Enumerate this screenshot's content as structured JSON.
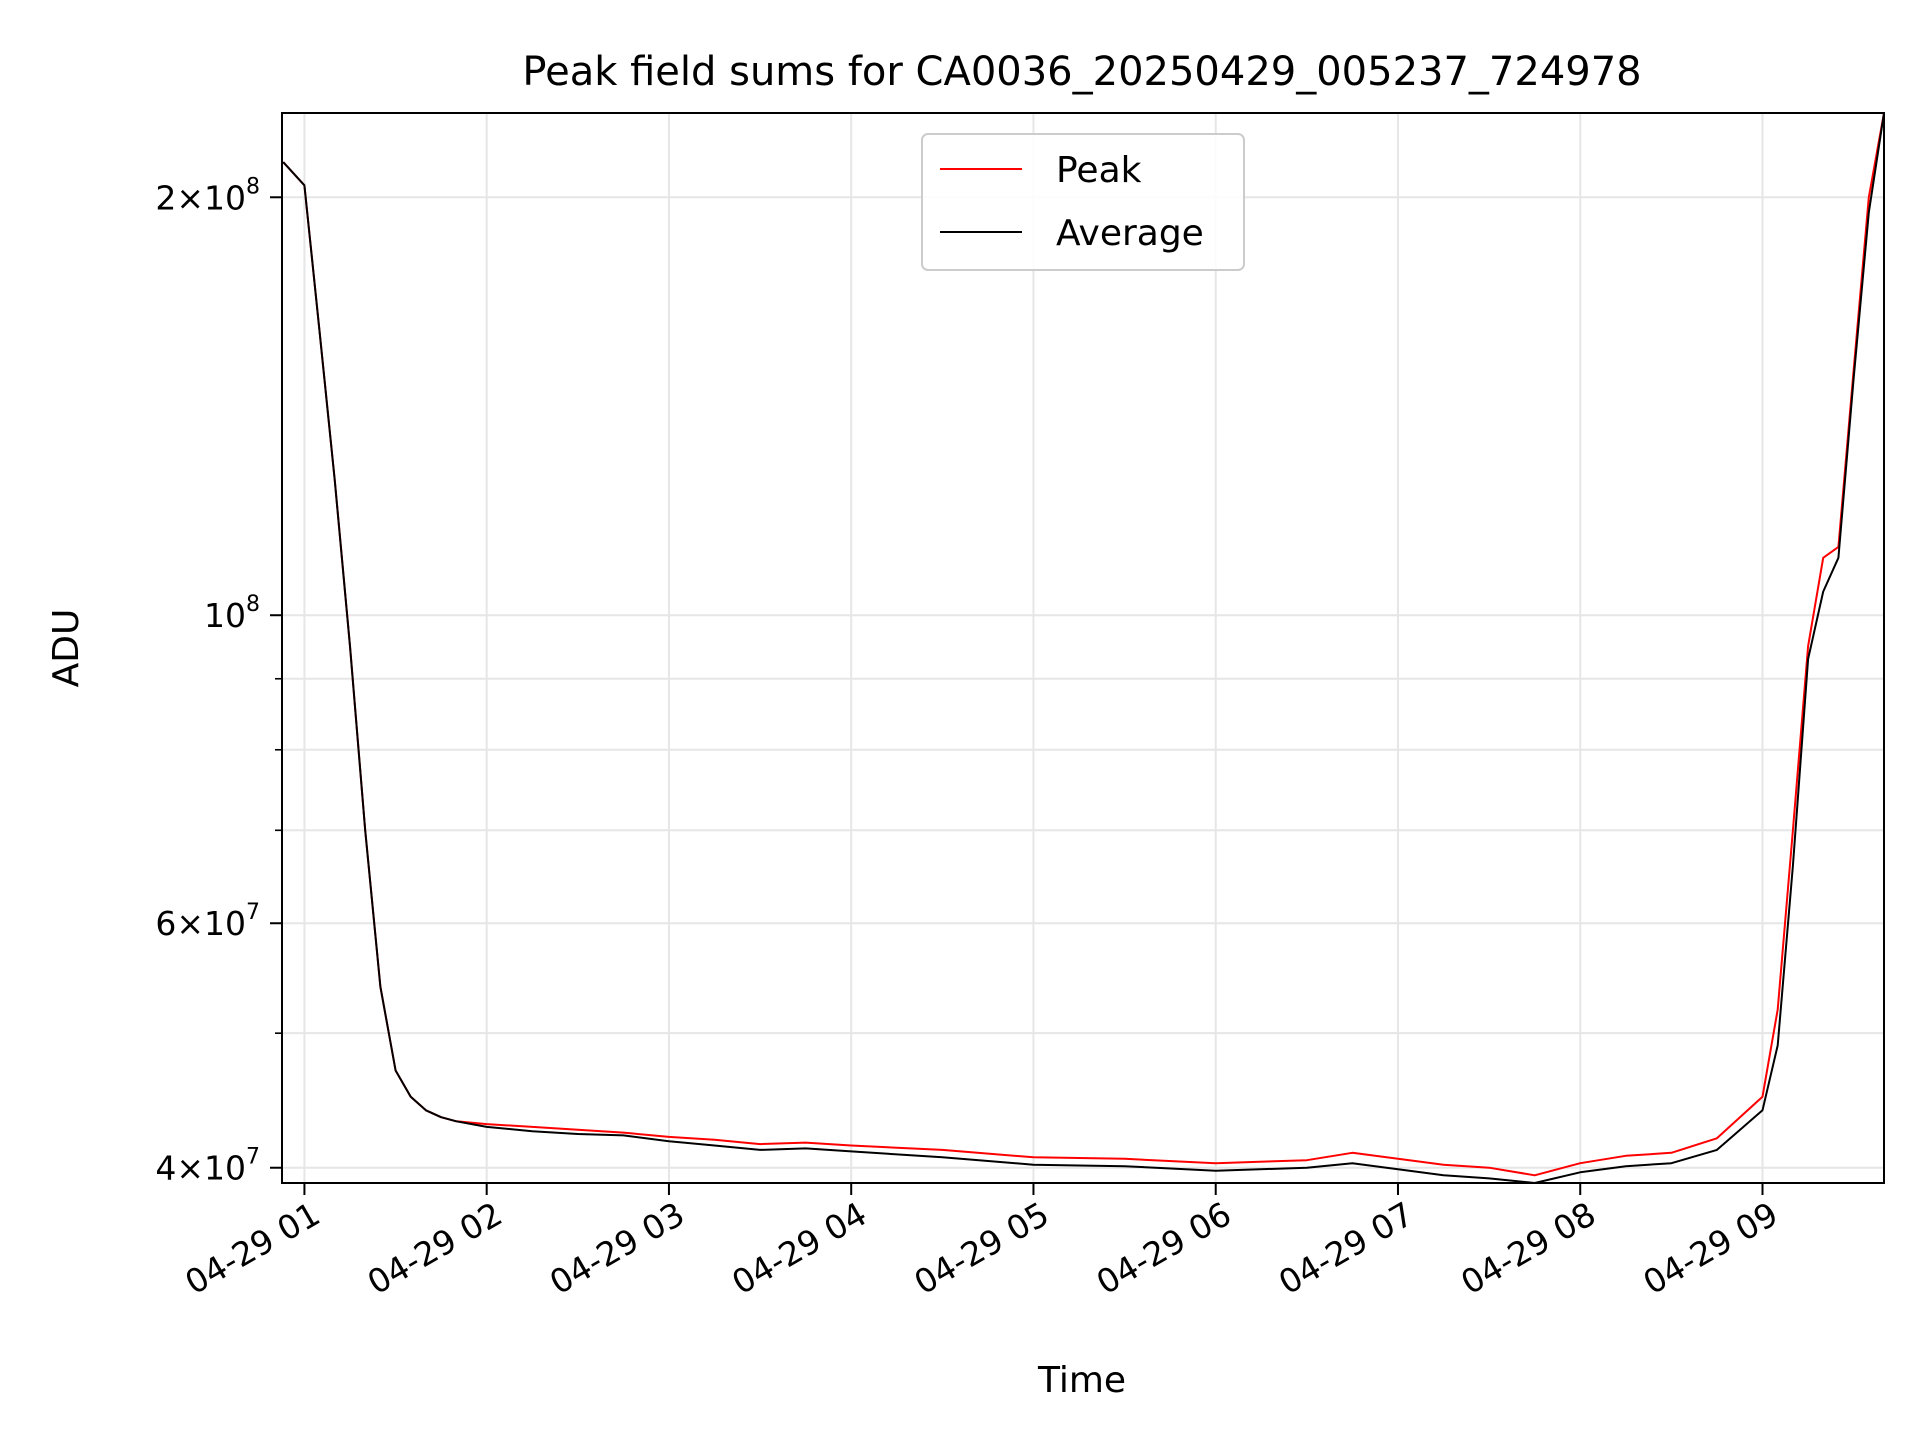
{
  "chart_data": {
    "type": "line",
    "title": "Peak field sums for CA0036_20250429_005237_724978",
    "xlabel": "Time",
    "ylabel": "ADU",
    "y_scale": "log",
    "grid": true,
    "legend_position": "top-center",
    "xlim": [
      "2025-04-29 00:52:37",
      "2025-04-29 09:40"
    ],
    "ylim": [
      39000000,
      230000000
    ],
    "x_ticks": [
      {
        "value": "2025-04-29 01:00",
        "label": "04-29 01"
      },
      {
        "value": "2025-04-29 02:00",
        "label": "04-29 02"
      },
      {
        "value": "2025-04-29 03:00",
        "label": "04-29 03"
      },
      {
        "value": "2025-04-29 04:00",
        "label": "04-29 04"
      },
      {
        "value": "2025-04-29 05:00",
        "label": "04-29 05"
      },
      {
        "value": "2025-04-29 06:00",
        "label": "04-29 06"
      },
      {
        "value": "2025-04-29 07:00",
        "label": "04-29 07"
      },
      {
        "value": "2025-04-29 08:00",
        "label": "04-29 08"
      },
      {
        "value": "2025-04-29 09:00",
        "label": "04-29 09"
      }
    ],
    "y_major_ticks": [
      {
        "value": 40000000,
        "mantissa": "4",
        "exp": "7"
      },
      {
        "value": 60000000,
        "mantissa": "6",
        "exp": "7"
      },
      {
        "value": 100000000,
        "mantissa": "",
        "exp": "8"
      },
      {
        "value": 200000000,
        "mantissa": "2",
        "exp": "8"
      }
    ],
    "y_minor_ticks": [
      50000000,
      70000000,
      80000000,
      90000000
    ],
    "series": [
      {
        "name": "Peak",
        "color": "#ff0000",
        "note_spikes": true,
        "x": [
          "2025-04-29 00:53",
          "2025-04-29 01:00",
          "2025-04-29 01:05",
          "2025-04-29 01:10",
          "2025-04-29 01:15",
          "2025-04-29 01:20",
          "2025-04-29 01:25",
          "2025-04-29 01:30",
          "2025-04-29 01:35",
          "2025-04-29 01:40",
          "2025-04-29 01:45",
          "2025-04-29 01:50",
          "2025-04-29 02:00",
          "2025-04-29 02:15",
          "2025-04-29 02:30",
          "2025-04-29 02:45",
          "2025-04-29 03:00",
          "2025-04-29 03:15",
          "2025-04-29 03:30",
          "2025-04-29 03:45",
          "2025-04-29 04:00",
          "2025-04-29 04:30",
          "2025-04-29 05:00",
          "2025-04-29 05:30",
          "2025-04-29 06:00",
          "2025-04-29 06:30",
          "2025-04-29 06:45",
          "2025-04-29 07:00",
          "2025-04-29 07:15",
          "2025-04-29 07:30",
          "2025-04-29 07:45",
          "2025-04-29 08:00",
          "2025-04-29 08:15",
          "2025-04-29 08:30",
          "2025-04-29 08:45",
          "2025-04-29 09:00",
          "2025-04-29 09:05",
          "2025-04-29 09:10",
          "2025-04-29 09:15",
          "2025-04-29 09:20",
          "2025-04-29 09:25",
          "2025-04-29 09:30",
          "2025-04-29 09:35",
          "2025-04-29 09:40"
        ],
        "y": [
          212000000,
          204000000,
          160000000,
          125000000,
          95000000,
          70000000,
          54000000,
          47000000,
          45000000,
          44000000,
          43500000,
          43200000,
          43000000,
          42800000,
          42600000,
          42400000,
          42100000,
          41900000,
          41600000,
          41700000,
          41500000,
          41200000,
          40700000,
          40600000,
          40300000,
          40500000,
          41000000,
          40600000,
          40200000,
          40000000,
          39500000,
          40300000,
          40800000,
          41000000,
          42000000,
          45000000,
          52000000,
          70000000,
          95000000,
          110000000,
          112000000,
          150000000,
          200000000,
          230000000
        ]
      },
      {
        "name": "Average",
        "color": "#000000",
        "x": [
          "2025-04-29 00:53",
          "2025-04-29 01:00",
          "2025-04-29 01:05",
          "2025-04-29 01:10",
          "2025-04-29 01:15",
          "2025-04-29 01:20",
          "2025-04-29 01:25",
          "2025-04-29 01:30",
          "2025-04-29 01:35",
          "2025-04-29 01:40",
          "2025-04-29 01:45",
          "2025-04-29 01:50",
          "2025-04-29 02:00",
          "2025-04-29 02:15",
          "2025-04-29 02:30",
          "2025-04-29 02:45",
          "2025-04-29 03:00",
          "2025-04-29 03:15",
          "2025-04-29 03:30",
          "2025-04-29 03:45",
          "2025-04-29 04:00",
          "2025-04-29 04:30",
          "2025-04-29 05:00",
          "2025-04-29 05:30",
          "2025-04-29 06:00",
          "2025-04-29 06:30",
          "2025-04-29 06:45",
          "2025-04-29 07:00",
          "2025-04-29 07:15",
          "2025-04-29 07:30",
          "2025-04-29 07:45",
          "2025-04-29 08:00",
          "2025-04-29 08:15",
          "2025-04-29 08:30",
          "2025-04-29 08:45",
          "2025-04-29 09:00",
          "2025-04-29 09:05",
          "2025-04-29 09:10",
          "2025-04-29 09:15",
          "2025-04-29 09:20",
          "2025-04-29 09:25",
          "2025-04-29 09:30",
          "2025-04-29 09:35",
          "2025-04-29 09:40"
        ],
        "y": [
          212000000,
          204000000,
          160000000,
          125000000,
          95000000,
          70000000,
          54000000,
          47000000,
          45000000,
          44000000,
          43500000,
          43200000,
          42800000,
          42500000,
          42300000,
          42200000,
          41800000,
          41500000,
          41200000,
          41300000,
          41100000,
          40700000,
          40200000,
          40100000,
          39800000,
          40000000,
          40300000,
          39900000,
          39500000,
          39300000,
          39000000,
          39700000,
          40100000,
          40300000,
          41200000,
          44000000,
          49000000,
          66000000,
          93000000,
          104000000,
          110000000,
          148000000,
          195000000,
          230000000
        ]
      }
    ]
  }
}
